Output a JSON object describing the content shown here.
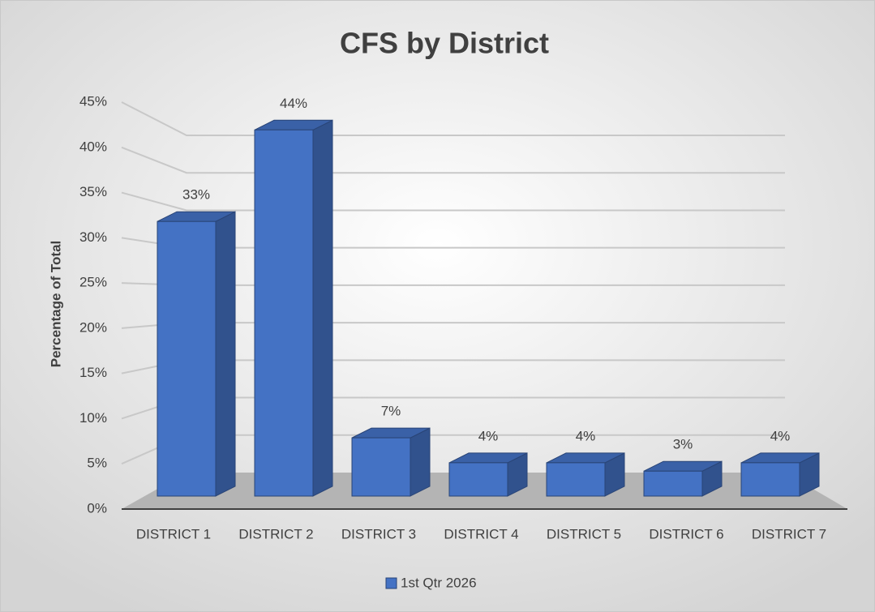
{
  "chart_data": {
    "type": "bar",
    "title": "CFS by District",
    "y_axis_label": "Percentage of Total",
    "categories": [
      "DISTRICT 1",
      "DISTRICT 2",
      "DISTRICT 3",
      "DISTRICT 4",
      "DISTRICT 5",
      "DISTRICT 6",
      "DISTRICT 7"
    ],
    "series": [
      {
        "name": "1st Qtr 2026",
        "color": "#4472c4",
        "values": [
          33,
          44,
          7,
          4,
          4,
          3,
          4
        ],
        "value_labels": [
          "33%",
          "44%",
          "7%",
          "4%",
          "4%",
          "3%",
          "4%"
        ]
      }
    ],
    "ylim": [
      0,
      45
    ],
    "yticks": [
      {
        "value": 0,
        "label": "0%"
      },
      {
        "value": 5,
        "label": "5%"
      },
      {
        "value": 10,
        "label": "10%"
      },
      {
        "value": 15,
        "label": "15%"
      },
      {
        "value": 20,
        "label": "20%"
      },
      {
        "value": 25,
        "label": "25%"
      },
      {
        "value": 30,
        "label": "30%"
      },
      {
        "value": 35,
        "label": "35%"
      },
      {
        "value": 40,
        "label": "40%"
      },
      {
        "value": 45,
        "label": "45%"
      }
    ],
    "grid": true,
    "legend": "bottom"
  }
}
